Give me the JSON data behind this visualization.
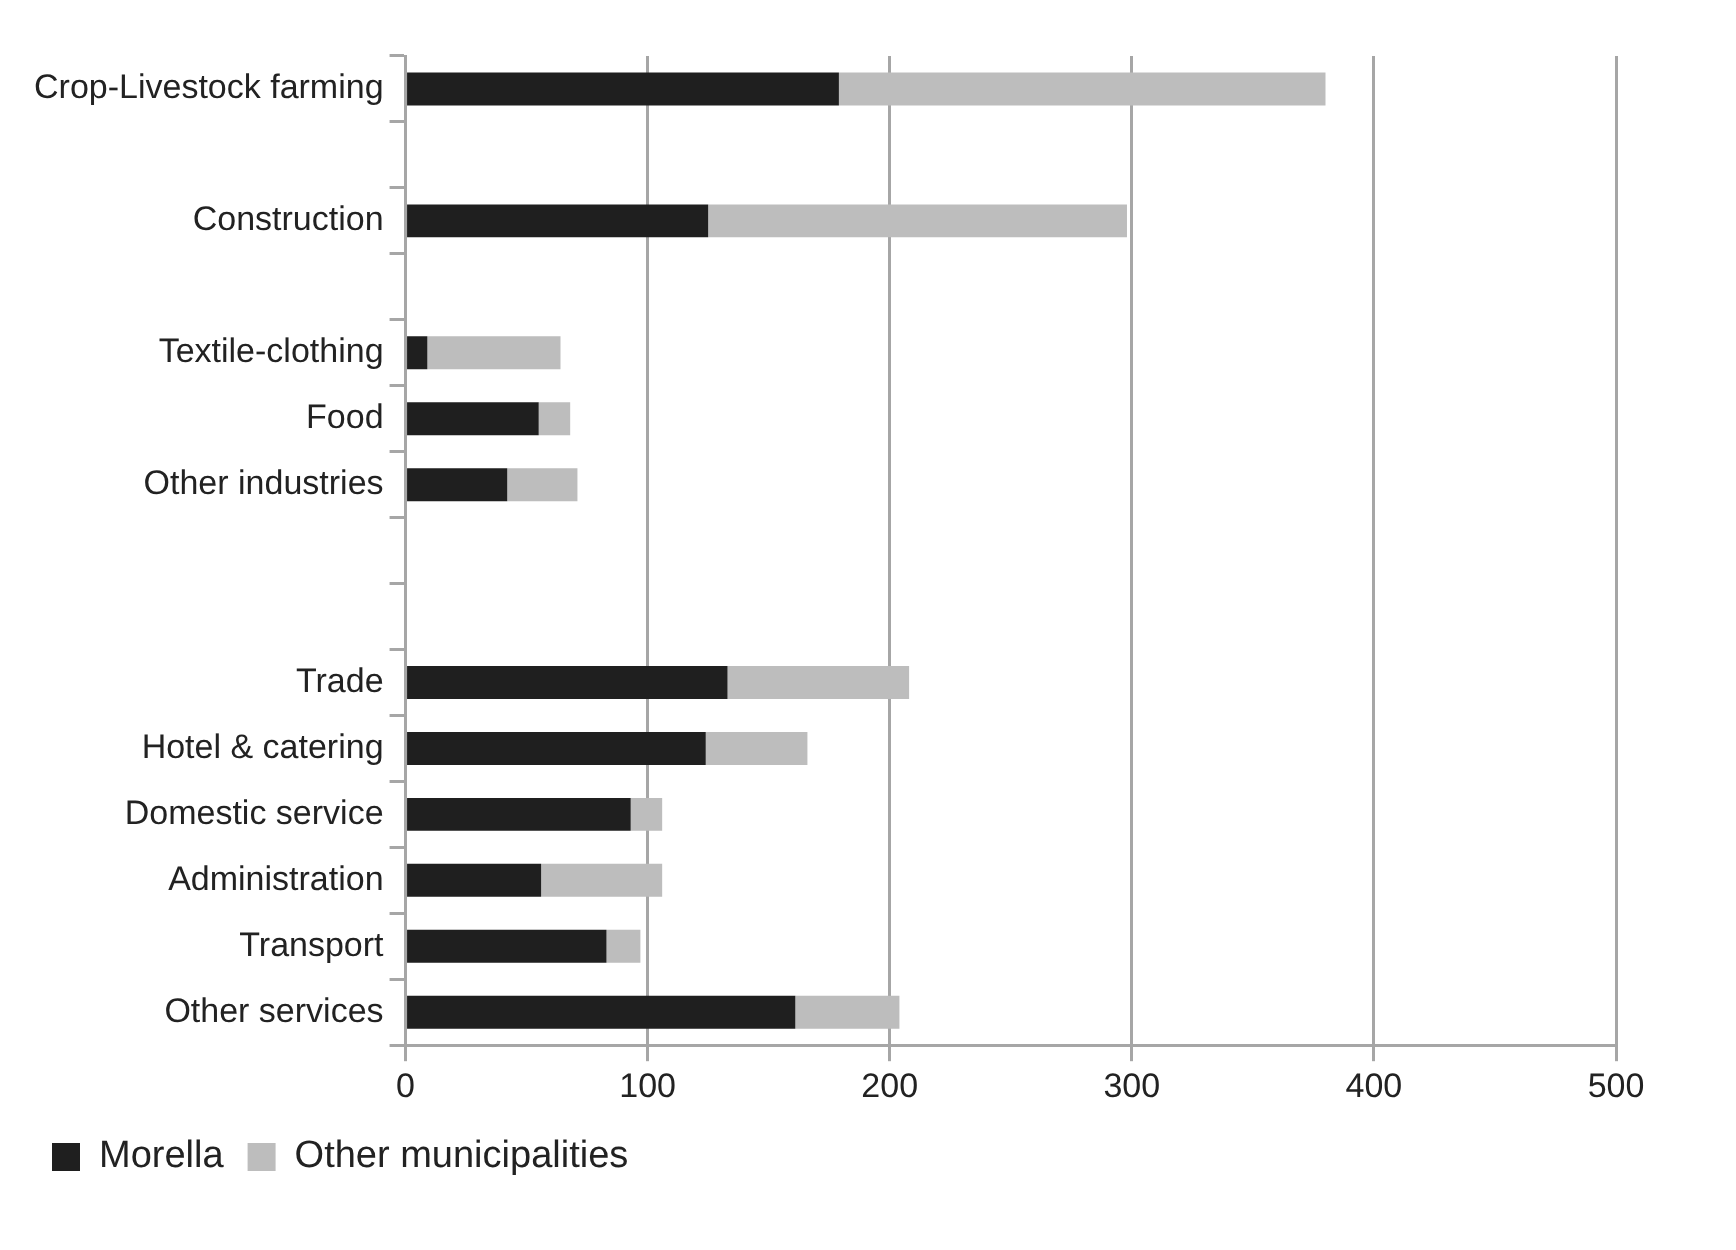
{
  "chart_data": {
    "type": "bar",
    "orientation": "horizontal",
    "stacked": true,
    "categories": [
      "Crop-Livestock farming",
      null,
      "Construction",
      null,
      "Textile-clothing",
      "Food",
      "Other industries",
      null,
      null,
      "Trade",
      "Hotel & catering",
      "Domestic service",
      "Administration",
      "Transport",
      "Other services"
    ],
    "series": [
      {
        "name": "Morella",
        "color": "#1f1f1f",
        "values": [
          179,
          null,
          125,
          null,
          9,
          55,
          42,
          null,
          null,
          133,
          124,
          93,
          56,
          83,
          161
        ]
      },
      {
        "name": "Other municipalities",
        "color": "#bdbdbd",
        "values": [
          201,
          null,
          173,
          null,
          55,
          13,
          29,
          null,
          null,
          75,
          42,
          13,
          50,
          14,
          43
        ]
      }
    ],
    "xlim": [
      0,
      500
    ],
    "xticks": [
      0,
      100,
      200,
      300,
      400,
      500
    ],
    "grid": "x",
    "legend": "bottom"
  }
}
